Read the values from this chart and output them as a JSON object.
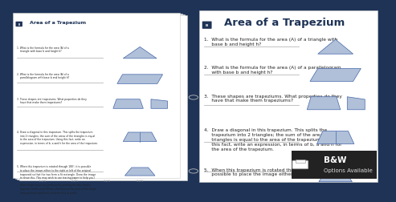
{
  "bg_color": "#1e3356",
  "page_bg": "#ffffff",
  "title": "Area of a Trapezium",
  "title_color": "#1e3356",
  "accent_color": "#1e3356",
  "shape_fill": "#b0c0d8",
  "shape_edge": "#4466aa",
  "text_color": "#222222",
  "bw_box_color": "#222222",
  "bw_text_1": "B&W",
  "bw_text_2": "Options Available",
  "left_questions": [
    "1. What is the formula for the area (A) of a triangle with base b and height h?",
    "2. What is the formula for the area (A) of a parallelogram with base b and height h?",
    "3. These shapes are trapeziums. What properties do they have that make them trapeziums?",
    "4. Draw a diagonal in this trapezium. This splits the trapezium into 2 triangles; the sum of the areas of the triangles is equal to the area of the trapezium. Using this fact, write an expression, in terms of b, a and h for the area of the trapezium.",
    "5. When this trapezium is rotated through 180°, it is possible to place the image either to the right or left"
  ],
  "right_questions": [
    "1.  What is the formula for the area (A) of a triangle with\n     base b and height h?",
    "2.  What is the formula for the area (A) of a parallelogram\n     with base b and height h?",
    "3.  These shapes are trapeziums. What properties do they\n     have that make them trapeziums?",
    "4.  Draw a diagonal in this trapezium. This splits the\n     trapezium into 2 triangles; the sum of the areas of the\n     triangles is equal to the area of the trapezium. Using\n     this fact, write an expression, in terms of b, a and h for\n     the area of the trapezium.",
    "5.  When this trapezium is rotated through 180°, it is\n     possible to place the image either to the right or left"
  ]
}
